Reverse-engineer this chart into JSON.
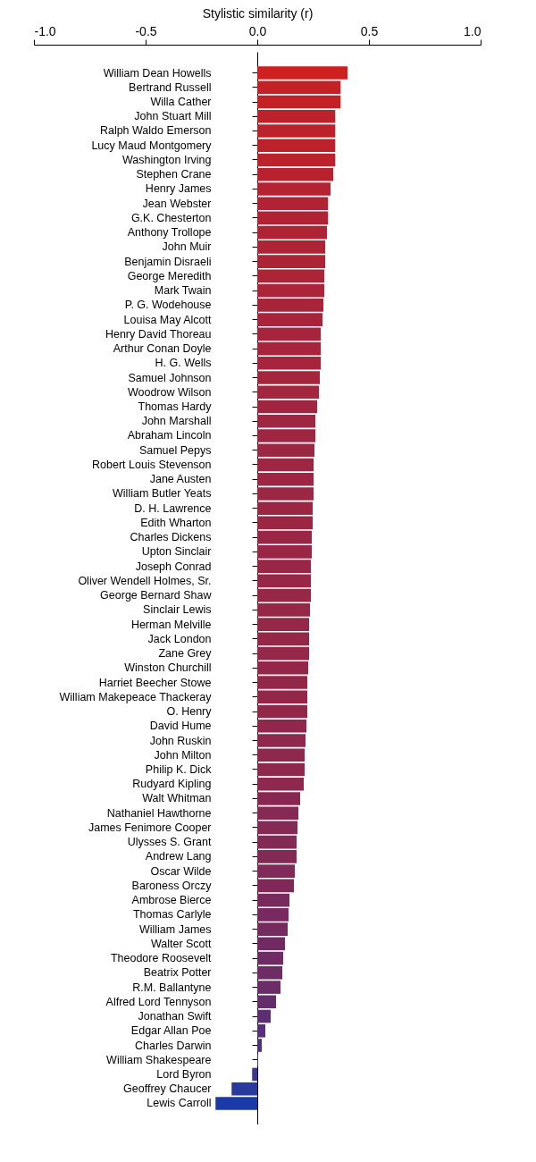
{
  "chart_data": {
    "type": "bar",
    "orientation": "horizontal",
    "xlabel": "Stylistic similarity (r)",
    "categories": [
      "William Dean Howells",
      "Bertrand Russell",
      "Willa Cather",
      "John Stuart Mill",
      "Ralph Waldo Emerson",
      "Lucy Maud Montgomery",
      "Washington Irving",
      "Stephen Crane",
      "Henry James",
      "Jean Webster",
      "G.K. Chesterton",
      "Anthony Trollope",
      "John Muir",
      "Benjamin Disraeli",
      "George Meredith",
      "Mark Twain",
      "P. G. Wodehouse",
      "Louisa May Alcott",
      "Henry David Thoreau",
      "Arthur Conan Doyle",
      "H. G. Wells",
      "Samuel Johnson",
      "Woodrow Wilson",
      "Thomas Hardy",
      "John Marshall",
      "Abraham Lincoln",
      "Samuel Pepys",
      "Robert Louis Stevenson",
      "Jane Austen",
      "William Butler Yeats",
      "D. H. Lawrence",
      "Edith Wharton",
      "Charles Dickens",
      "Upton Sinclair",
      "Joseph Conrad",
      "Oliver Wendell Holmes, Sr.",
      "George Bernard Shaw",
      "Sinclair Lewis",
      "Herman Melville",
      "Jack London",
      "Zane Grey",
      "Winston Churchill",
      "Harriet Beecher Stowe",
      "William Makepeace Thackeray",
      "O. Henry",
      "David Hume",
      "John Ruskin",
      "John Milton",
      "Philip K. Dick",
      "Rudyard Kipling",
      "Walt Whitman",
      "Nathaniel Hawthorne",
      "James Fenimore Cooper",
      "Ulysses S. Grant",
      "Andrew Lang",
      "Oscar Wilde",
      "Baroness Orczy",
      "Ambrose Bierce",
      "Thomas Carlyle",
      "William James",
      "Walter Scott",
      "Theodore Roosevelt",
      "Beatrix Potter",
      "R.M. Ballantyne",
      "Alfred Lord Tennyson",
      "Jonathan Swift",
      "Edgar Allan Poe",
      "Charles Darwin",
      "William Shakespeare",
      "Lord Byron",
      "Geoffrey Chaucer",
      "Lewis Carroll"
    ],
    "values": [
      0.404,
      0.373,
      0.373,
      0.349,
      0.349,
      0.349,
      0.349,
      0.34,
      0.328,
      0.317,
      0.317,
      0.312,
      0.304,
      0.304,
      0.3,
      0.3,
      0.296,
      0.292,
      0.284,
      0.284,
      0.284,
      0.28,
      0.276,
      0.268,
      0.26,
      0.26,
      0.256,
      0.252,
      0.252,
      0.252,
      0.248,
      0.248,
      0.244,
      0.244,
      0.24,
      0.24,
      0.24,
      0.236,
      0.232,
      0.232,
      0.232,
      0.228,
      0.224,
      0.224,
      0.224,
      0.22,
      0.216,
      0.212,
      0.212,
      0.208,
      0.192,
      0.184,
      0.18,
      0.176,
      0.176,
      0.168,
      0.164,
      0.144,
      0.14,
      0.136,
      0.124,
      0.116,
      0.112,
      0.104,
      0.084,
      0.06,
      0.036,
      0.02,
      0.004,
      -0.023,
      -0.115,
      -0.187
    ],
    "colors": [
      "#cd201f",
      "#c32126",
      "#c32126",
      "#bb222c",
      "#bb222c",
      "#bb222c",
      "#bb222c",
      "#b8222e",
      "#b52331",
      "#b12334",
      "#b12334",
      "#af2435",
      "#ad2437",
      "#ad2437",
      "#ac2438",
      "#ac2438",
      "#aa2439",
      "#a9243a",
      "#a6253c",
      "#a6253c",
      "#a6253c",
      "#a5253d",
      "#a4253e",
      "#a12540",
      "#9f2642",
      "#9f2642",
      "#9d2643",
      "#9c2644",
      "#9c2644",
      "#9c2644",
      "#9b2644",
      "#9b2644",
      "#992645",
      "#992645",
      "#982646",
      "#982646",
      "#982646",
      "#972747",
      "#952748",
      "#952748",
      "#952748",
      "#942749",
      "#93274a",
      "#93274a",
      "#93274a",
      "#92274b",
      "#90274c",
      "#8f284d",
      "#8f284d",
      "#8e284e",
      "#882852",
      "#862954",
      "#852955",
      "#832956",
      "#832956",
      "#812958",
      "#7f2959",
      "#792a5d",
      "#782a5e",
      "#762b5f",
      "#722b62",
      "#702b64",
      "#6e2c65",
      "#6c2c67",
      "#652d6c",
      "#5e2e72",
      "#562f77",
      "#512f7b",
      "#4b307f",
      "#3e368e",
      "#2a3a9c",
      "#1a3aaa"
    ],
    "xlim": [
      -1,
      1
    ],
    "xticks": [
      {
        "value": -1,
        "label": "-1.0"
      },
      {
        "value": -0.5,
        "label": "-0.5"
      },
      {
        "value": 0,
        "label": "0.0"
      },
      {
        "value": 0.5,
        "label": "0.5"
      },
      {
        "value": 1,
        "label": "1.0"
      }
    ]
  }
}
